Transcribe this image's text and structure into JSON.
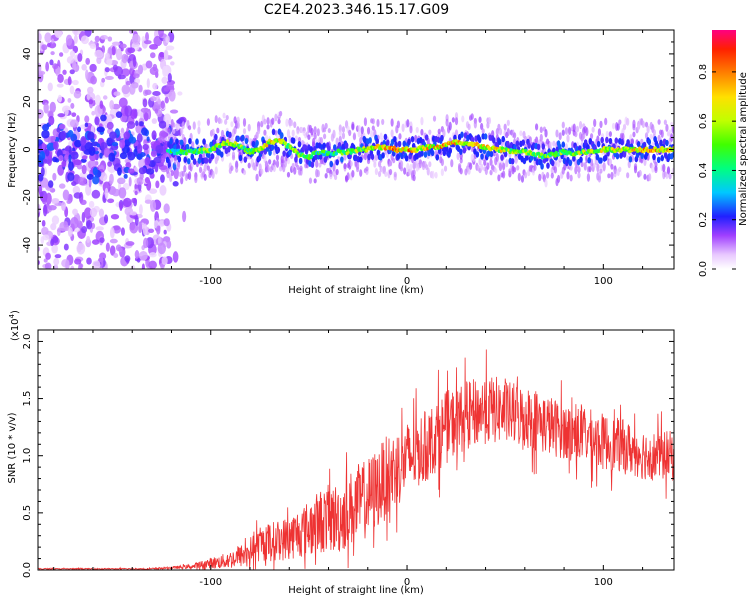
{
  "title": "C2E4.2023.346.15.17.G09",
  "colorbar": {
    "label": "Normalized spectral amplitude",
    "ticks": [
      "0.0",
      "0.2",
      "0.4",
      "0.6",
      "0.8"
    ],
    "tick_values": [
      0.0,
      0.2,
      0.4,
      0.6,
      0.8
    ],
    "range": [
      0.0,
      0.97
    ]
  },
  "chart_data": [
    {
      "type": "heatmap",
      "xlabel": "Height of straight line (km)",
      "ylabel": "Frequency (Hz)",
      "xlim": [
        -188,
        136
      ],
      "ylim": [
        -50,
        50
      ],
      "xticks": [
        -100,
        0,
        100
      ],
      "xtick_labels": [
        "-100",
        "0",
        "100"
      ],
      "yticks": [
        -40,
        -20,
        0,
        20,
        40
      ],
      "ytick_labels": [
        "-40",
        "-20",
        "0",
        "20",
        "40"
      ],
      "ridge": {
        "x": [
          -120,
          -110,
          -100,
          -95,
          -90,
          -85,
          -80,
          -75,
          -70,
          -65,
          -60,
          -55,
          -50,
          -45,
          -40,
          -35,
          -30,
          -25,
          -20,
          -15,
          -10,
          -5,
          0,
          5,
          10,
          15,
          20,
          25,
          30,
          35,
          40,
          45,
          50,
          55,
          60,
          65,
          70,
          75,
          80,
          85,
          90,
          95,
          100,
          105,
          110,
          115,
          120,
          125,
          130,
          135
        ],
        "y": [
          -1,
          -1,
          0,
          2,
          3,
          1,
          -1,
          0,
          3,
          4,
          1,
          -2,
          -3,
          -1,
          -2,
          -1,
          -1,
          0,
          0,
          1,
          1,
          0,
          0,
          0,
          1,
          1,
          2,
          3,
          2,
          2,
          1,
          0,
          0,
          -1,
          -1,
          -2,
          -3,
          -2,
          -1,
          -2,
          -1,
          -1,
          0,
          0,
          0,
          0,
          0,
          0,
          0,
          0
        ],
        "amplitude": [
          0.55,
          0.6,
          0.7,
          0.75,
          0.78,
          0.65,
          0.6,
          0.7,
          0.85,
          0.8,
          0.7,
          0.65,
          0.6,
          0.55,
          0.55,
          0.6,
          0.65,
          0.7,
          0.75,
          0.8,
          0.9,
          0.92,
          0.95,
          0.9,
          0.88,
          0.9,
          0.92,
          0.95,
          0.9,
          0.88,
          0.85,
          0.8,
          0.75,
          0.7,
          0.7,
          0.65,
          0.62,
          0.65,
          0.7,
          0.72,
          0.75,
          0.75,
          0.78,
          0.8,
          0.82,
          0.85,
          0.88,
          0.9,
          0.88,
          0.85
        ]
      },
      "noise_region": {
        "x_from": -188,
        "x_to": -120,
        "amplitude": 0.15
      }
    },
    {
      "type": "line",
      "xlabel": "Height of straight line (km)",
      "ylabel": "SNR (10 * v/v)",
      "y_multiplier_label": "(x10",
      "y_multiplier_exp": "4",
      "y_multiplier_close": ")",
      "xlim": [
        -188,
        136
      ],
      "ylim": [
        0,
        2.1
      ],
      "xticks": [
        -100,
        0,
        100
      ],
      "xtick_labels": [
        "-100",
        "0",
        "100"
      ],
      "yticks": [
        0.0,
        0.5,
        1.0,
        1.5,
        2.0
      ],
      "ytick_labels": [
        "0.0",
        "0.5",
        "1.0",
        "1.5",
        "2.0"
      ],
      "color": "#ee3333",
      "series": [
        {
          "x": [
            -188,
            -180,
            -170,
            -160,
            -150,
            -140,
            -130,
            -120,
            -110,
            -105,
            -100,
            -95,
            -90,
            -85,
            -80,
            -75,
            -70,
            -65,
            -60,
            -55,
            -50,
            -45,
            -40,
            -35,
            -30,
            -25,
            -20,
            -15,
            -10,
            -5,
            0,
            5,
            10,
            15,
            20,
            25,
            30,
            35,
            40,
            45,
            50,
            55,
            60,
            65,
            70,
            75,
            80,
            85,
            90,
            95,
            100,
            105,
            110,
            115,
            120,
            125,
            130,
            136
          ],
          "y": [
            0.01,
            0.01,
            0.01,
            0.01,
            0.01,
            0.01,
            0.01,
            0.02,
            0.03,
            0.04,
            0.06,
            0.07,
            0.09,
            0.12,
            0.17,
            0.22,
            0.25,
            0.26,
            0.28,
            0.33,
            0.36,
            0.42,
            0.45,
            0.45,
            0.52,
            0.58,
            0.63,
            0.72,
            0.82,
            0.9,
            0.97,
            1.03,
            1.08,
            1.18,
            1.25,
            1.3,
            1.35,
            1.38,
            1.4,
            1.4,
            1.38,
            1.36,
            1.34,
            1.32,
            1.28,
            1.25,
            1.22,
            1.2,
            1.18,
            1.15,
            1.12,
            1.1,
            1.08,
            1.05,
            1.02,
            1.0,
            1.0,
            1.0
          ],
          "spread": [
            0.005,
            0.005,
            0.005,
            0.005,
            0.005,
            0.006,
            0.008,
            0.01,
            0.02,
            0.04,
            0.05,
            0.06,
            0.08,
            0.1,
            0.12,
            0.15,
            0.17,
            0.18,
            0.2,
            0.22,
            0.25,
            0.28,
            0.3,
            0.32,
            0.33,
            0.35,
            0.35,
            0.36,
            0.36,
            0.35,
            0.33,
            0.32,
            0.32,
            0.32,
            0.32,
            0.3,
            0.3,
            0.3,
            0.3,
            0.3,
            0.28,
            0.28,
            0.28,
            0.28,
            0.27,
            0.26,
            0.25,
            0.25,
            0.25,
            0.25,
            0.25,
            0.24,
            0.24,
            0.23,
            0.23,
            0.22,
            0.22,
            0.22
          ]
        }
      ]
    }
  ]
}
